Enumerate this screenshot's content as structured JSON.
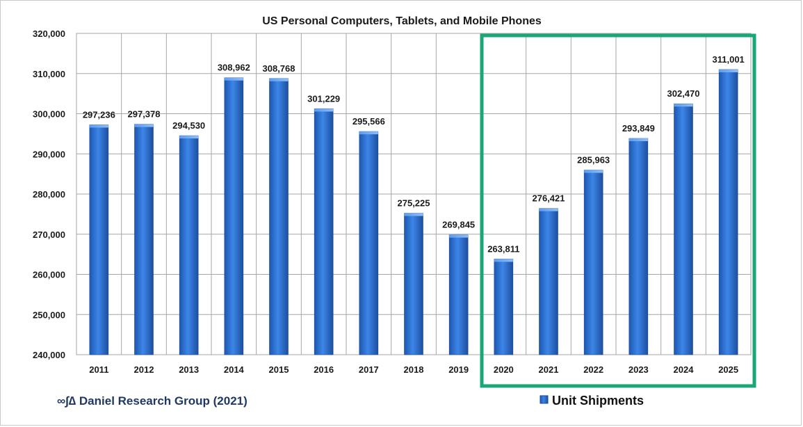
{
  "chart_data": {
    "type": "bar",
    "title": "US Personal Computers, Tablets, and Mobile Phones",
    "categories": [
      "2011",
      "2012",
      "2013",
      "2014",
      "2015",
      "2016",
      "2017",
      "2018",
      "2019",
      "2020",
      "2021",
      "2022",
      "2023",
      "2024",
      "2025"
    ],
    "series": [
      {
        "name": "Unit Shipments",
        "values": [
          297236,
          297378,
          294530,
          308962,
          308768,
          301229,
          295566,
          275225,
          269845,
          263811,
          276421,
          285963,
          293849,
          302470,
          311001
        ],
        "labels": [
          "297,236",
          "297,378",
          "294,530",
          "308,962",
          "308,768",
          "301,229",
          "295,566",
          "275,225",
          "269,845",
          "263,811",
          "276,421",
          "285,963",
          "293,849",
          "302,470",
          "311,001"
        ]
      }
    ],
    "ylim": [
      240000,
      320000
    ],
    "yticks": [
      240000,
      250000,
      260000,
      270000,
      280000,
      290000,
      300000,
      310000,
      320000
    ],
    "ytick_labels": [
      "240,000",
      "250,000",
      "260,000",
      "270,000",
      "280,000",
      "290,000",
      "300,000",
      "310,000",
      "320,000"
    ],
    "xlabel": "",
    "ylabel": "",
    "grid": "vertical and horizontal",
    "legend_position": "bottom-right",
    "highlight": {
      "from": "2020",
      "to": "2025",
      "color": "#18a878"
    },
    "bar_color": "#2e74d8"
  },
  "footer": {
    "source_text": "∞∫∆ Daniel Research Group (2021)"
  }
}
